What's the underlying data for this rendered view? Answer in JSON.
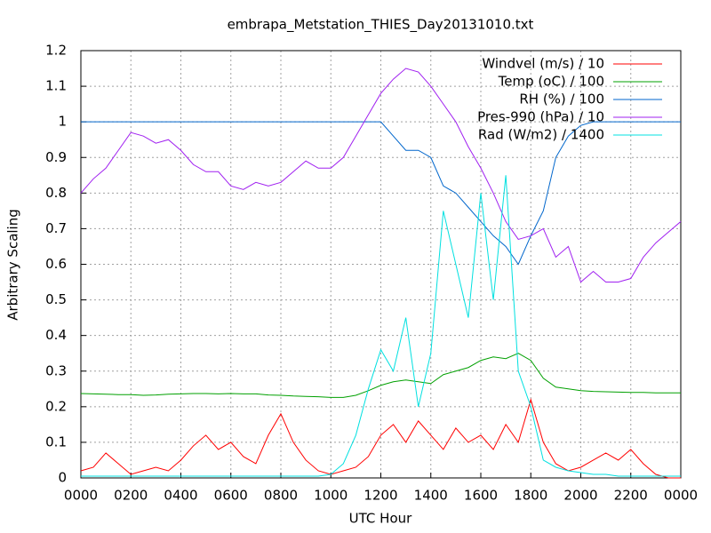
{
  "chart_data": {
    "type": "line",
    "title": "embrapa_Metstation_THIES_Day20131010.txt",
    "x_label": "UTC Hour",
    "y_label": "Arbitrary Scaling",
    "xlim": [
      0,
      24
    ],
    "ylim": [
      0,
      1.2
    ],
    "xticks": [
      {
        "value": 0,
        "label": "0000"
      },
      {
        "value": 2,
        "label": "0200"
      },
      {
        "value": 4,
        "label": "0400"
      },
      {
        "value": 6,
        "label": "0600"
      },
      {
        "value": 8,
        "label": "0800"
      },
      {
        "value": 10,
        "label": "1000"
      },
      {
        "value": 12,
        "label": "1200"
      },
      {
        "value": 14,
        "label": "1400"
      },
      {
        "value": 16,
        "label": "1600"
      },
      {
        "value": 18,
        "label": "1800"
      },
      {
        "value": 20,
        "label": "2000"
      },
      {
        "value": 22,
        "label": "2200"
      },
      {
        "value": 24,
        "label": "0000"
      }
    ],
    "yticks": [
      0,
      0.1,
      0.2,
      0.3,
      0.4,
      0.5,
      0.6,
      0.7,
      0.8,
      0.9,
      1,
      1.1,
      1.2
    ],
    "grid": true,
    "legend": "top-right",
    "x": [
      0,
      0.5,
      1,
      1.5,
      2,
      2.5,
      3,
      3.5,
      4,
      4.5,
      5,
      5.5,
      6,
      6.5,
      7,
      7.5,
      8,
      8.5,
      9,
      9.5,
      10,
      10.5,
      11,
      11.5,
      12,
      12.5,
      13,
      13.5,
      14,
      14.5,
      15,
      15.5,
      16,
      16.5,
      17,
      17.5,
      18,
      18.5,
      19,
      19.5,
      20,
      20.5,
      21,
      21.5,
      22,
      22.5,
      23,
      23.5,
      24
    ],
    "series": [
      {
        "name": "Windvel (m/s) / 10",
        "color": "#ff0000",
        "values": [
          0.02,
          0.03,
          0.07,
          0.04,
          0.01,
          0.02,
          0.03,
          0.02,
          0.05,
          0.09,
          0.12,
          0.08,
          0.1,
          0.06,
          0.04,
          0.12,
          0.18,
          0.1,
          0.05,
          0.02,
          0.01,
          0.02,
          0.03,
          0.06,
          0.12,
          0.15,
          0.1,
          0.16,
          0.12,
          0.08,
          0.14,
          0.1,
          0.12,
          0.08,
          0.15,
          0.1,
          0.22,
          0.1,
          0.04,
          0.02,
          0.03,
          0.05,
          0.07,
          0.05,
          0.08,
          0.04,
          0.01,
          0,
          0
        ]
      },
      {
        "name": "Temp (oC) / 100",
        "color": "#00a000",
        "values": [
          0.237,
          0.236,
          0.235,
          0.234,
          0.234,
          0.232,
          0.233,
          0.235,
          0.236,
          0.237,
          0.237,
          0.236,
          0.237,
          0.236,
          0.236,
          0.233,
          0.232,
          0.23,
          0.229,
          0.228,
          0.226,
          0.226,
          0.232,
          0.245,
          0.26,
          0.27,
          0.275,
          0.27,
          0.265,
          0.29,
          0.3,
          0.31,
          0.33,
          0.34,
          0.335,
          0.35,
          0.33,
          0.28,
          0.255,
          0.25,
          0.245,
          0.243,
          0.242,
          0.241,
          0.24,
          0.24,
          0.239,
          0.239,
          0.239
        ]
      },
      {
        "name": "RH (%) / 100",
        "color": "#0066cc",
        "values": [
          1,
          1,
          1,
          1,
          1,
          1,
          1,
          1,
          1,
          1,
          1,
          1,
          1,
          1,
          1,
          1,
          1,
          1,
          1,
          1,
          1,
          1,
          1,
          1,
          1,
          0.96,
          0.92,
          0.92,
          0.9,
          0.82,
          0.8,
          0.76,
          0.72,
          0.68,
          0.65,
          0.6,
          0.68,
          0.75,
          0.9,
          0.96,
          0.99,
          1,
          1,
          1,
          1,
          1,
          1,
          1,
          1
        ]
      },
      {
        "name": "Pres-990 (hPa) / 10",
        "color": "#a020f0",
        "values": [
          0.8,
          0.84,
          0.87,
          0.92,
          0.97,
          0.96,
          0.94,
          0.95,
          0.92,
          0.88,
          0.86,
          0.86,
          0.82,
          0.81,
          0.83,
          0.82,
          0.83,
          0.86,
          0.89,
          0.87,
          0.87,
          0.9,
          0.96,
          1.02,
          1.08,
          1.12,
          1.15,
          1.14,
          1.1,
          1.05,
          1,
          0.93,
          0.87,
          0.8,
          0.72,
          0.67,
          0.68,
          0.7,
          0.62,
          0.65,
          0.55,
          0.58,
          0.55,
          0.55,
          0.56,
          0.62,
          0.66,
          0.69,
          0.72
        ]
      },
      {
        "name": "Rad (W/m2) / 1400",
        "color": "#00e0e0",
        "values": [
          0.005,
          0.005,
          0.005,
          0.005,
          0.005,
          0.005,
          0.005,
          0.005,
          0.005,
          0.005,
          0.005,
          0.005,
          0.005,
          0.005,
          0.005,
          0.005,
          0.005,
          0.005,
          0.005,
          0.005,
          0.01,
          0.04,
          0.12,
          0.25,
          0.36,
          0.3,
          0.45,
          0.2,
          0.35,
          0.75,
          0.6,
          0.45,
          0.8,
          0.5,
          0.85,
          0.3,
          0.2,
          0.05,
          0.03,
          0.02,
          0.015,
          0.01,
          0.01,
          0.005,
          0.005,
          0.005,
          0.005,
          0.005,
          0.005
        ]
      }
    ]
  }
}
